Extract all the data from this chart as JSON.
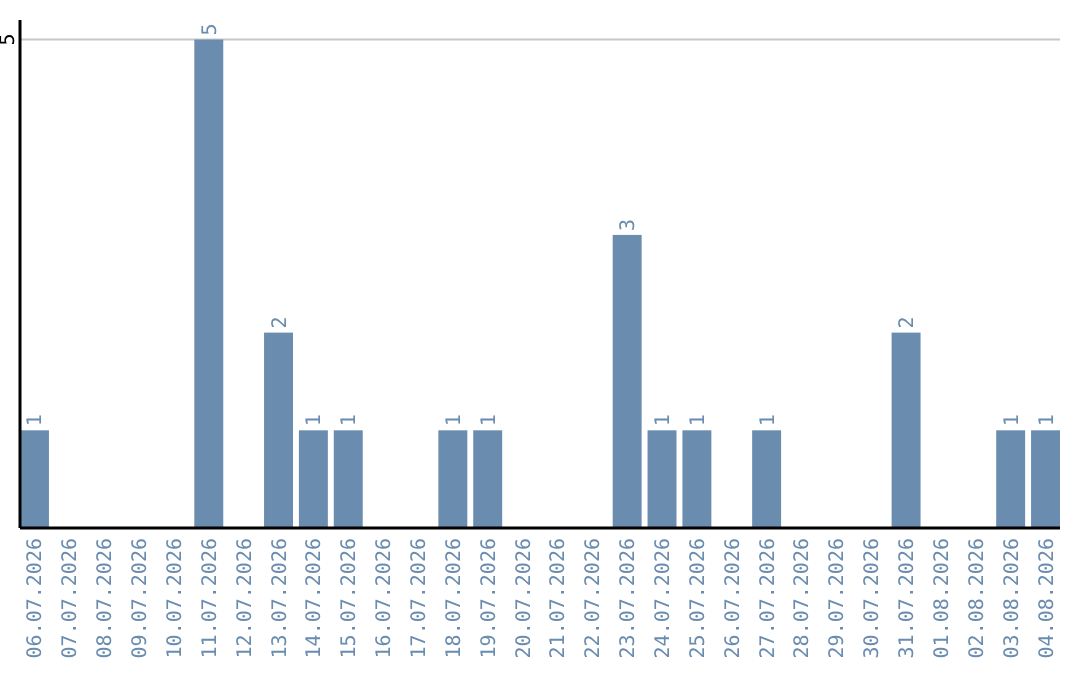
{
  "chart_data": {
    "type": "bar",
    "categories": [
      "06.07.2026",
      "07.07.2026",
      "08.07.2026",
      "09.07.2026",
      "10.07.2026",
      "11.07.2026",
      "12.07.2026",
      "13.07.2026",
      "14.07.2026",
      "15.07.2026",
      "16.07.2026",
      "17.07.2026",
      "18.07.2026",
      "19.07.2026",
      "20.07.2026",
      "21.07.2026",
      "22.07.2026",
      "23.07.2026",
      "24.07.2026",
      "25.07.2026",
      "26.07.2026",
      "27.07.2026",
      "28.07.2026",
      "29.07.2026",
      "30.07.2026",
      "31.07.2026",
      "01.08.2026",
      "02.08.2026",
      "03.08.2026",
      "04.08.2026"
    ],
    "values": [
      1,
      0,
      0,
      0,
      0,
      5,
      0,
      2,
      1,
      1,
      0,
      0,
      1,
      1,
      0,
      0,
      0,
      3,
      1,
      1,
      0,
      1,
      0,
      0,
      0,
      2,
      0,
      0,
      1,
      1
    ],
    "value_labels": [
      "1",
      null,
      null,
      null,
      null,
      "5",
      null,
      "2",
      "1",
      "1",
      null,
      null,
      "1",
      "1",
      null,
      null,
      null,
      "3",
      "1",
      "1",
      null,
      "1",
      null,
      null,
      null,
      "2",
      null,
      null,
      "1",
      "1"
    ],
    "color": "#6a8caf",
    "ylim": [
      0,
      5.2
    ],
    "yticks": [
      5
    ],
    "grid": "y"
  }
}
